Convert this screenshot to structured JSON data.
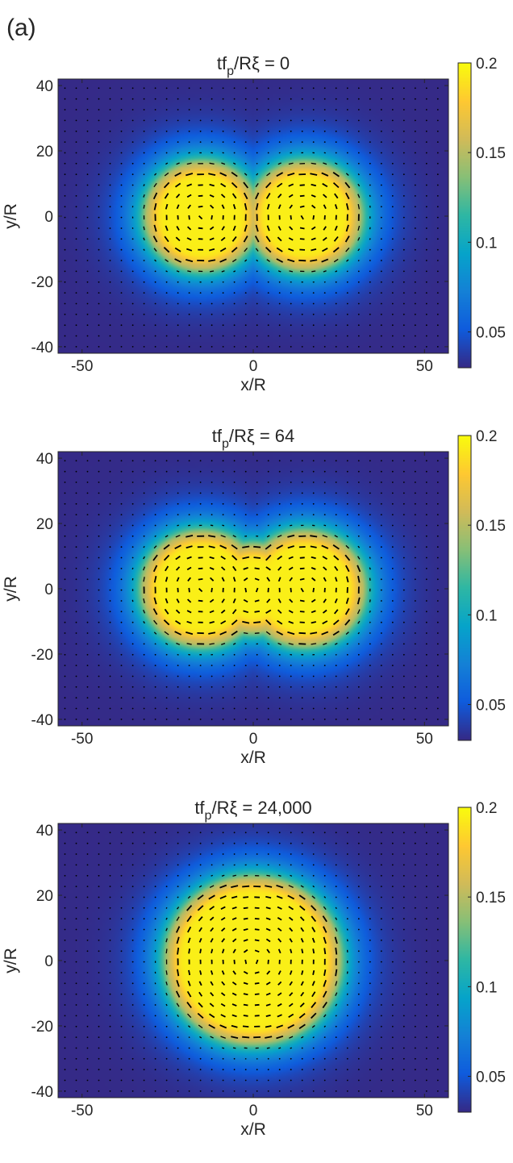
{
  "figure_label": "(a)",
  "colorbar": {
    "min": 0.03,
    "max": 0.2,
    "ticks": [
      0.05,
      0.1,
      0.15,
      0.2
    ],
    "tick_labels": [
      "0.05",
      "0.1",
      "0.15",
      "0.2"
    ],
    "colormap": "parula",
    "colormap_stops": [
      "#352a87",
      "#0f5cdd",
      "#1481d6",
      "#06a4ca",
      "#2eb7a4",
      "#87bf77",
      "#d1bb59",
      "#fec832",
      "#f9fb0e"
    ]
  },
  "chart_data": [
    {
      "type": "heatmap",
      "title_main": "tf",
      "title_sub": "p",
      "title_rest": "/Rξ = 0",
      "xlabel": "x/R",
      "ylabel": "y/R",
      "xlim": [
        -57,
        57
      ],
      "ylim": [
        -42,
        42
      ],
      "xticks": [
        -50,
        0,
        50
      ],
      "xtick_labels": [
        "-50",
        "0",
        "50"
      ],
      "yticks": [
        -40,
        -20,
        0,
        20,
        40
      ],
      "ytick_labels": [
        "-40",
        "-20",
        "0",
        "20",
        "40"
      ],
      "structure": "two touching circular vortex patches with circulating director field",
      "lobes": [
        {
          "center": [
            -15,
            0
          ],
          "radius": 16
        },
        {
          "center": [
            15,
            0
          ],
          "radius": 16
        }
      ]
    },
    {
      "type": "heatmap",
      "title_main": "tf",
      "title_sub": "p",
      "title_rest": "/Rξ = 64",
      "xlabel": "x/R",
      "ylabel": "y/R",
      "xlim": [
        -57,
        57
      ],
      "ylim": [
        -42,
        42
      ],
      "xticks": [
        -50,
        0,
        50
      ],
      "xtick_labels": [
        "-50",
        "0",
        "50"
      ],
      "yticks": [
        -40,
        -20,
        0,
        20,
        40
      ],
      "ytick_labels": [
        "-40",
        "-20",
        "0",
        "20",
        "40"
      ],
      "structure": "merging peanut-shaped patch with circulating director field",
      "lobes": [
        {
          "center": [
            -15,
            0
          ],
          "radius": 17
        },
        {
          "center": [
            15,
            0
          ],
          "radius": 17
        },
        {
          "center": [
            0,
            0
          ],
          "radius": 13
        }
      ]
    },
    {
      "type": "heatmap",
      "title_main": "tf",
      "title_sub": "p",
      "title_rest": "/Rξ = 24,000",
      "xlabel": "x/R",
      "ylabel": "y/R",
      "xlim": [
        -57,
        57
      ],
      "ylim": [
        -42,
        42
      ],
      "xticks": [
        -50,
        0,
        50
      ],
      "xtick_labels": [
        "-50",
        "0",
        "50"
      ],
      "yticks": [
        -40,
        -20,
        0,
        20,
        40
      ],
      "ytick_labels": [
        "-40",
        "-20",
        "0",
        "20",
        "40"
      ],
      "structure": "single circular vortex patch with circulating director field",
      "lobes": [
        {
          "center": [
            0,
            0
          ],
          "radius": 25
        }
      ]
    }
  ]
}
